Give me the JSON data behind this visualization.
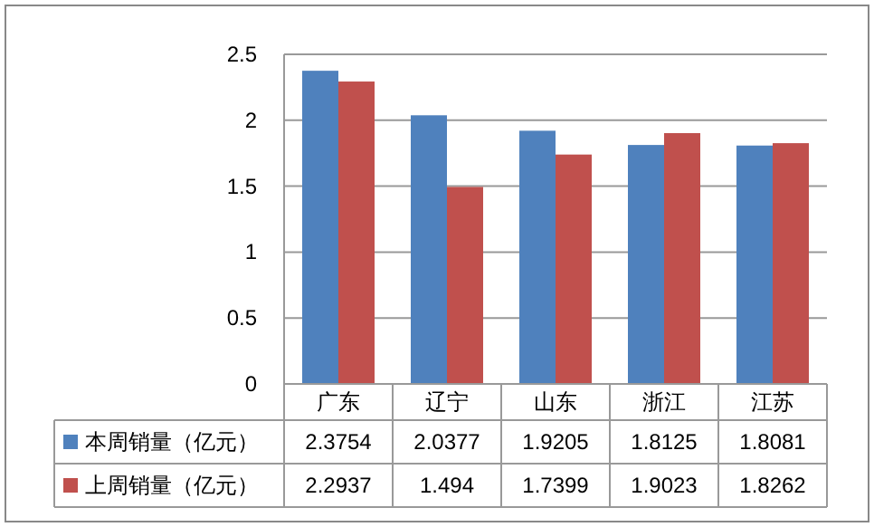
{
  "chart_data": {
    "type": "bar",
    "categories": [
      "广东",
      "辽宁",
      "山东",
      "浙江",
      "江苏"
    ],
    "series": [
      {
        "name": "本周销量（亿元）",
        "color": "#4f81bd",
        "values": [
          2.3754,
          2.0377,
          1.9205,
          1.8125,
          1.8081
        ]
      },
      {
        "name": "上周销量（亿元）",
        "color": "#c0504d",
        "values": [
          2.2937,
          1.494,
          1.7399,
          1.9023,
          1.8262
        ]
      }
    ],
    "ylim": [
      0,
      2.5
    ],
    "yticks": [
      0,
      0.5,
      1,
      1.5,
      2,
      2.5
    ],
    "grid": "y",
    "legend": "bottom",
    "data_labels": true
  }
}
